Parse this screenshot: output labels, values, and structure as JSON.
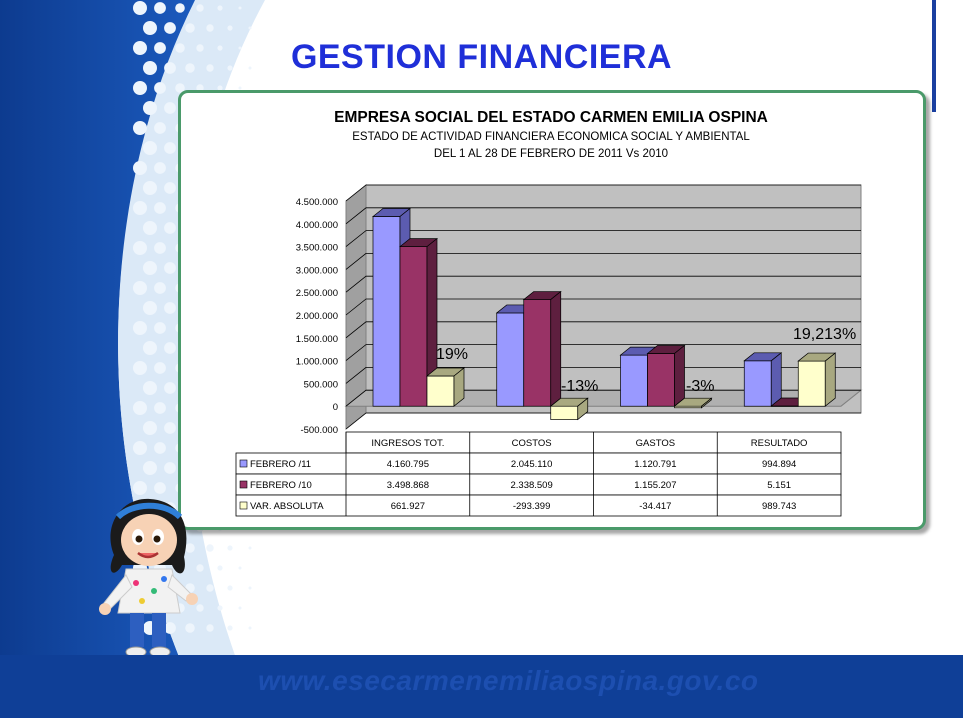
{
  "slide": {
    "title": "GESTION FINANCIERA",
    "footer_url": "www.esecarmenemiliaospina.gov.co"
  },
  "colors": {
    "title": "#1f2fd8",
    "footer": "#0f3f97",
    "febrero11": "#9999ff",
    "febrero10": "#993366",
    "var_absoluta": "#ffffcc"
  },
  "chart_data": {
    "type": "bar",
    "title": "EMPRESA SOCIAL DEL ESTADO CARMEN EMILIA OSPINA",
    "subtitle": [
      "ESTADO DE ACTIVIDAD FINANCIERA ECONOMICA SOCIAL Y AMBIENTAL",
      "DEL 1 AL 28 DE FEBRERO DE 2011 Vs 2010"
    ],
    "categories": [
      "INGRESOS TOT.",
      "COSTOS",
      "GASTOS",
      "RESULTADO"
    ],
    "series": [
      {
        "name": "FEBRERO /11",
        "values": [
          4160795,
          2045110,
          1120791,
          994894
        ],
        "labels": [
          "4.160.795",
          "2.045.110",
          "1.120.791",
          "994.894"
        ]
      },
      {
        "name": "FEBRERO /10",
        "values": [
          3498868,
          2338509,
          1155207,
          5151
        ],
        "labels": [
          "3.498.868",
          "2.338.509",
          "1.155.207",
          "5.151"
        ]
      },
      {
        "name": "VAR. ABSOLUTA",
        "values": [
          661927,
          -293399,
          -34417,
          989743
        ],
        "labels": [
          "661.927",
          "-293.399",
          "-34.417",
          "989.743"
        ]
      }
    ],
    "annotations": [
      "19%",
      "-13%",
      "-3%",
      "19,213%"
    ],
    "yticks": [
      "4.500.000",
      "4.000.000",
      "3.500.000",
      "3.000.000",
      "2.500.000",
      "2.000.000",
      "1.500.000",
      "1.000.000",
      "500.000",
      "0",
      "-500.000"
    ],
    "ylim": [
      -500000,
      4500000
    ],
    "grid": true,
    "legend": "data-table"
  }
}
